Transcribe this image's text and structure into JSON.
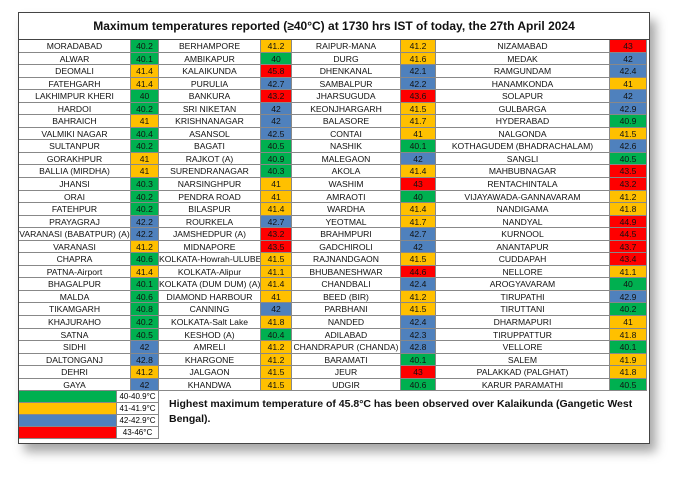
{
  "title": "Maximum temperatures reported (≥40°C) at 1730 hrs IST of today, the 27th April 2024",
  "table": {
    "rows": [
      [
        "MORADABAD",
        40.2,
        "BERHAMPORE",
        41.2,
        "RAIPUR-MANA",
        41.2,
        "NIZAMABAD",
        43
      ],
      [
        "ALWAR",
        40.1,
        "AMBIKAPUR",
        40,
        "DURG",
        41.6,
        "MEDAK",
        42
      ],
      [
        "DEOMALI",
        41.4,
        "KALAIKUNDA",
        45.8,
        "DHENKANAL",
        42.1,
        "RAMGUNDAM",
        42.4
      ],
      [
        "FATEHGARH",
        41.4,
        "PURULIA",
        42.7,
        "SAMBALPUR",
        42.2,
        "HANAMKONDA",
        41
      ],
      [
        "LAKHIMPUR KHERI",
        40,
        "BANKURA",
        43.2,
        "JHARSUGUDA",
        43.6,
        "SOLAPUR",
        42
      ],
      [
        "HARDOI",
        40.2,
        "SRI NIKETAN",
        42,
        "KEONJHARGARH",
        41.5,
        "GULBARGA",
        42.9
      ],
      [
        "BAHRAICH",
        41,
        "KRISHNANAGAR",
        42,
        "BALASORE",
        41.7,
        "HYDERABAD",
        40.9
      ],
      [
        "VALMIKI NAGAR",
        40.4,
        "ASANSOL",
        42.5,
        "CONTAI",
        41,
        "NALGONDA",
        41.5
      ],
      [
        "SULTANPUR",
        40.2,
        "BAGATI",
        40.5,
        "NASHIK",
        40.1,
        "KOTHAGUDEM (BHADRACHALAM)",
        42.6
      ],
      [
        "GORAKHPUR",
        41,
        "RAJKOT (A)",
        40.9,
        "MALEGAON",
        42,
        "SANGLI",
        40.5
      ],
      [
        "BALLIA (MIRDHA)",
        41,
        "SURENDRANAGAR",
        40.3,
        "AKOLA",
        41.4,
        "MAHBUBNAGAR",
        43.5
      ],
      [
        "JHANSI",
        40.3,
        "NARSINGHPUR",
        41,
        "WASHIM",
        43,
        "RENTACHINTALA",
        43.2
      ],
      [
        "ORAI",
        40.2,
        "PENDRA ROAD",
        41,
        "AMRAOTI",
        40,
        "VIJAYAWADA-GANNAVARAM",
        41.2
      ],
      [
        "FATEHPUR",
        40.2,
        "BILASPUR",
        41.4,
        "WARDHA",
        41.4,
        "NANDIGAMA",
        41.8
      ],
      [
        "PRAYAGRAJ",
        42.2,
        "ROURKELA",
        42.7,
        "YEOTMAL",
        41.7,
        "NANDYAL",
        44.9
      ],
      [
        "VARANASI (BABATPUR) (A)",
        42.2,
        "JAMSHEDPUR (A)",
        43.2,
        "BRAHMPURI",
        42.7,
        "KURNOOL",
        44.5
      ],
      [
        "VARANASI",
        41.2,
        "MIDNAPORE",
        43.5,
        "GADCHIROLI",
        42,
        "ANANTAPUR",
        43.7
      ],
      [
        "CHAPRA",
        40.6,
        "KOLKATA-Howrah-ULUBERIA",
        41.5,
        "RAJNANDGAON",
        41.5,
        "CUDDAPAH",
        43.4
      ],
      [
        "PATNA-Airport",
        41.4,
        "KOLKATA-Alipur",
        41.1,
        "BHUBANESHWAR",
        44.6,
        "NELLORE",
        41.1
      ],
      [
        "BHAGALPUR",
        40.1,
        "KOLKATA (DUM DUM) (A)",
        41.4,
        "CHANDBALI",
        42.4,
        "AROGYAVARAM",
        40
      ],
      [
        "MALDA",
        40.6,
        "DIAMOND HARBOUR",
        41,
        "BEED (BIR)",
        41.2,
        "TIRUPATHI",
        42.9
      ],
      [
        "TIKAMGARH",
        40.8,
        "CANNING",
        42,
        "PARBHANI",
        41.5,
        "TIRUTTANI",
        40.2
      ],
      [
        "KHAJURAHO",
        40.2,
        "KOLKATA-Salt Lake",
        41.8,
        "NANDED",
        42.4,
        "DHARMAPURI",
        41
      ],
      [
        "SATNA",
        40.5,
        "KESHOD (A)",
        40.4,
        "ADILABAD",
        42.3,
        "TIRUPPATTUR",
        41.8
      ],
      [
        "SIDHI",
        42,
        "AMRELI",
        41.2,
        "CHANDRAPUR (CHANDA)",
        42.8,
        "VELLORE",
        40.1
      ],
      [
        "DALTONGANJ",
        42.8,
        "KHARGONE",
        41.2,
        "BARAMATI",
        40.1,
        "SALEM",
        41.9
      ],
      [
        "DEHRI",
        41.2,
        "JALGAON",
        41.5,
        "JEUR",
        43,
        "PALAKKAD (PALGHAT)",
        41.8
      ],
      [
        "GAYA",
        42,
        "KHANDWA",
        41.5,
        "UDGIR",
        40.6,
        "KARUR PARAMATHI",
        40.5
      ]
    ]
  },
  "legend": [
    {
      "label": "40-40.9°C",
      "color": "#00b050",
      "from": 40,
      "to": 40.9
    },
    {
      "label": "41-41.9°C",
      "color": "#ffc000",
      "from": 41,
      "to": 41.9
    },
    {
      "label": "42-42.9°C",
      "color": "#4f81bd",
      "from": 42,
      "to": 42.9
    },
    {
      "label": "43-46°C",
      "color": "#ff0000",
      "from": 43,
      "to": 46
    }
  ],
  "footnote": "Highest maximum temperature of 45.8°C has been observed over Kalaikunda (Gangetic West Bengal)."
}
